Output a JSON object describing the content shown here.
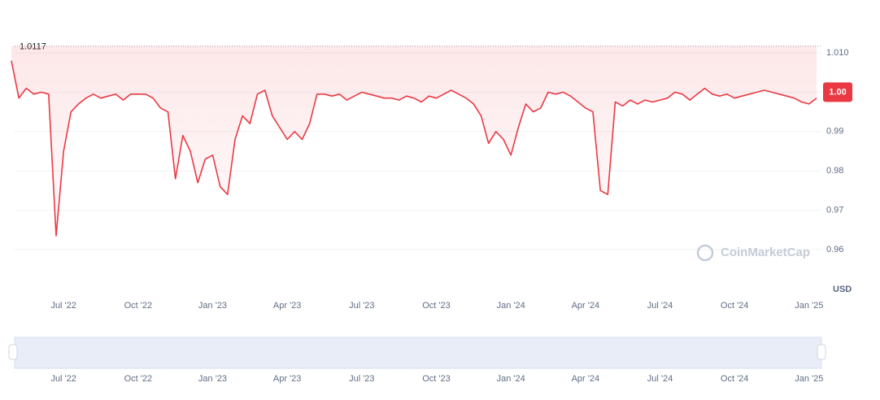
{
  "chart_data": {
    "type": "line",
    "categories": [
      null,
      null,
      null,
      null,
      null,
      null,
      null,
      "Jul '22",
      null,
      null,
      null,
      null,
      null,
      null,
      null,
      null,
      null,
      "Oct '22",
      null,
      null,
      null,
      null,
      null,
      null,
      null,
      null,
      null,
      "Jan '23",
      null,
      null,
      null,
      null,
      null,
      null,
      null,
      null,
      null,
      "Apr '23",
      null,
      null,
      null,
      null,
      null,
      null,
      null,
      null,
      null,
      "Jul '23",
      null,
      null,
      null,
      null,
      null,
      null,
      null,
      null,
      null,
      "Oct '23",
      null,
      null,
      null,
      null,
      null,
      null,
      null,
      null,
      null,
      "Jan '24",
      null,
      null,
      null,
      null,
      null,
      null,
      null,
      null,
      null,
      "Apr '24",
      null,
      null,
      null,
      null,
      null,
      null,
      null,
      null,
      null,
      "Jul '24",
      null,
      null,
      null,
      null,
      null,
      null,
      null,
      null,
      null,
      "Oct '24",
      null,
      null,
      null,
      null,
      null,
      null,
      null,
      null,
      null,
      "Jan '25",
      null
    ],
    "series": [
      {
        "color": "#ea3943",
        "values": [
          1.008,
          0.9985,
          1.001,
          0.9995,
          1.0,
          0.9995,
          0.9635,
          0.985,
          0.995,
          0.997,
          0.9985,
          0.9995,
          0.9985,
          0.999,
          0.9995,
          0.998,
          0.9995,
          0.9995,
          0.9995,
          0.9985,
          0.996,
          0.995,
          0.978,
          0.989,
          0.985,
          0.977,
          0.983,
          0.984,
          0.976,
          0.974,
          0.988,
          0.994,
          0.992,
          0.9995,
          1.0005,
          0.994,
          0.991,
          0.988,
          0.99,
          0.988,
          0.992,
          0.9995,
          0.9995,
          0.999,
          0.9995,
          0.998,
          0.999,
          1.0,
          0.9995,
          0.999,
          0.9985,
          0.9985,
          0.998,
          0.999,
          0.9985,
          0.9975,
          0.999,
          0.9985,
          0.9995,
          1.0005,
          0.9995,
          0.9985,
          0.997,
          0.994,
          0.987,
          0.99,
          0.988,
          0.984,
          0.991,
          0.997,
          0.995,
          0.996,
          1.0,
          0.9995,
          1.0,
          0.999,
          0.9975,
          0.996,
          0.995,
          0.975,
          0.974,
          0.9975,
          0.9965,
          0.998,
          0.997,
          0.998,
          0.9975,
          0.998,
          0.9985,
          1.0,
          0.9995,
          0.998,
          0.9995,
          1.001,
          0.9995,
          0.999,
          0.9995,
          0.9985,
          0.999,
          0.9995,
          1.0,
          1.0005,
          1.0,
          0.9995,
          0.999,
          0.9985,
          0.9975,
          0.997,
          0.9985
        ]
      }
    ],
    "ylim": [
      0.94967,
      1.02033
    ],
    "yticks": [
      0.96,
      0.97,
      0.98,
      0.99,
      {
        "value": 1,
        "label": "1.00"
      },
      {
        "value": 1.01,
        "label": "1.010"
      }
    ],
    "reference": {
      "value": 1.0117,
      "label": "1.0117"
    },
    "y_unit": "USD",
    "watermark": "CoinMarketCap",
    "grid": true
  }
}
